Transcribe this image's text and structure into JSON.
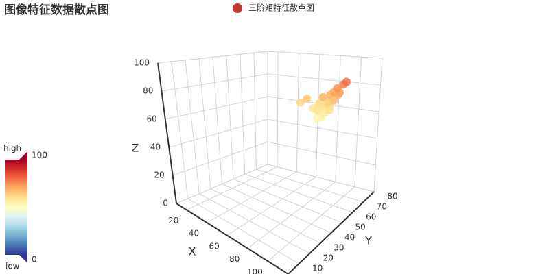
{
  "chart_data": {
    "type": "scatter3d",
    "title": "图像特征数据散点图",
    "series": [
      {
        "name": "三阶矩特征散点图",
        "color": "#c23531",
        "x": [
          62,
          66,
          70,
          72,
          74,
          68,
          76,
          78,
          80,
          82,
          75,
          71,
          73,
          77,
          79,
          69,
          67,
          74,
          76,
          84,
          86,
          88,
          81,
          72,
          70,
          52,
          56,
          78,
          74,
          80
        ],
        "y": [
          74,
          76,
          75,
          73,
          77,
          78,
          72,
          74,
          76,
          78,
          70,
          72,
          71,
          75,
          73,
          76,
          74,
          78,
          79,
          77,
          78,
          79,
          75,
          69,
          71,
          72,
          74,
          80,
          76,
          72
        ],
        "z": [
          58,
          62,
          60,
          55,
          64,
          66,
          57,
          63,
          68,
          70,
          54,
          59,
          56,
          65,
          61,
          67,
          60,
          69,
          71,
          72,
          78,
          80,
          66,
          53,
          58,
          62,
          65,
          74,
          63,
          59
        ]
      }
    ],
    "x_label": "X",
    "y_label": "Y",
    "z_label": "Z",
    "xlim": [
      10,
      120
    ],
    "xticks": [
      20,
      40,
      60,
      80,
      100
    ],
    "ylim": [
      0,
      80
    ],
    "yticks": [
      10,
      20,
      30,
      40,
      50,
      60,
      70,
      80
    ],
    "zlim": [
      0,
      100
    ],
    "zticks": [
      0,
      20,
      40,
      60,
      80,
      100
    ],
    "grid": true,
    "visual_map": {
      "min": 0,
      "max": 100,
      "text": [
        "high",
        "low"
      ],
      "colors": [
        "#313695",
        "#4575b4",
        "#74add1",
        "#abd9e9",
        "#e0f3f8",
        "#ffffbf",
        "#fee090",
        "#fdae61",
        "#f46d43",
        "#d73027",
        "#a50026"
      ]
    }
  }
}
